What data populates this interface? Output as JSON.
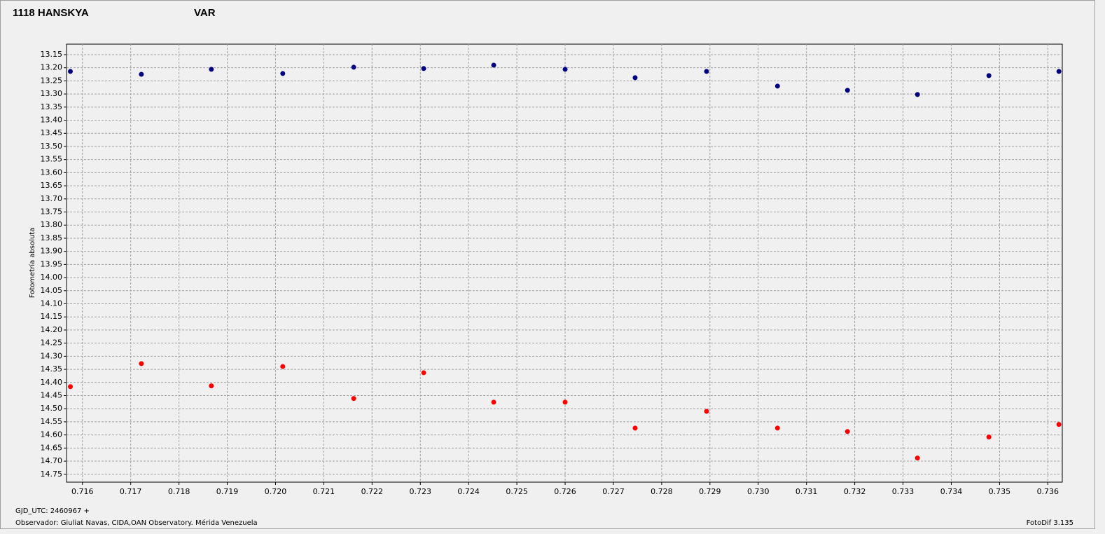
{
  "chart_data": {
    "type": "line",
    "ylabel": "Fotometría absoluta",
    "footer_left_1": "GJD_UTC: 2460967 +",
    "footer_left_2": "Observador: Giuliat Navas, CIDA,OAN Observatory. Mérida Venezuela",
    "footer_right": "FotoDif 3.135",
    "x": [
      0.71575,
      0.71722,
      0.71867,
      0.72015,
      0.72162,
      0.72307,
      0.72452,
      0.726,
      0.72745,
      0.72893,
      0.7304,
      0.73185,
      0.7333,
      0.73478,
      0.73623
    ],
    "series": [
      {
        "name": "1118 HANSKYA",
        "color": "#ff0000",
        "values": [
          14.416,
          14.328,
          14.413,
          14.339,
          14.461,
          14.363,
          14.475,
          14.475,
          14.574,
          14.51,
          14.574,
          14.587,
          14.688,
          14.608,
          14.56
        ]
      },
      {
        "name": "VAR",
        "color": "#000080",
        "values": [
          13.214,
          13.225,
          13.206,
          13.222,
          13.198,
          13.203,
          13.19,
          13.206,
          13.238,
          13.214,
          13.27,
          13.286,
          13.302,
          13.23,
          13.214
        ]
      }
    ],
    "xlim": [
      0.71567,
      0.7363
    ],
    "xticks": [
      0.716,
      0.717,
      0.718,
      0.719,
      {
        "value": 0.72,
        "label": "0.720"
      },
      0.721,
      0.722,
      0.723,
      0.724,
      0.725,
      0.726,
      0.727,
      0.728,
      0.729,
      {
        "value": 0.73,
        "label": "0.730"
      },
      0.731,
      0.732,
      0.733,
      0.734,
      0.735,
      0.736
    ],
    "ylim": [
      13.11,
      14.78
    ],
    "y_inverted": true,
    "yticks": [
      13.15,
      {
        "value": 13.2,
        "label": "13.20"
      },
      13.25,
      {
        "value": 13.3,
        "label": "13.30"
      },
      13.35,
      {
        "value": 13.4,
        "label": "13.40"
      },
      13.45,
      {
        "value": 13.5,
        "label": "13.50"
      },
      13.55,
      {
        "value": 13.6,
        "label": "13.60"
      },
      13.65,
      {
        "value": 13.7,
        "label": "13.70"
      },
      13.75,
      {
        "value": 13.8,
        "label": "13.80"
      },
      13.85,
      {
        "value": 13.9,
        "label": "13.90"
      },
      13.95,
      {
        "value": 14,
        "label": "14.00"
      },
      14.05,
      {
        "value": 14.1,
        "label": "14.10"
      },
      14.15,
      {
        "value": 14.2,
        "label": "14.20"
      },
      14.25,
      {
        "value": 14.3,
        "label": "14.30"
      },
      14.35,
      {
        "value": 14.4,
        "label": "14.40"
      },
      14.45,
      {
        "value": 14.5,
        "label": "14.50"
      },
      14.55,
      {
        "value": 14.6,
        "label": "14.60"
      },
      14.65,
      {
        "value": 14.7,
        "label": "14.70"
      },
      14.75
    ],
    "grid": true
  }
}
